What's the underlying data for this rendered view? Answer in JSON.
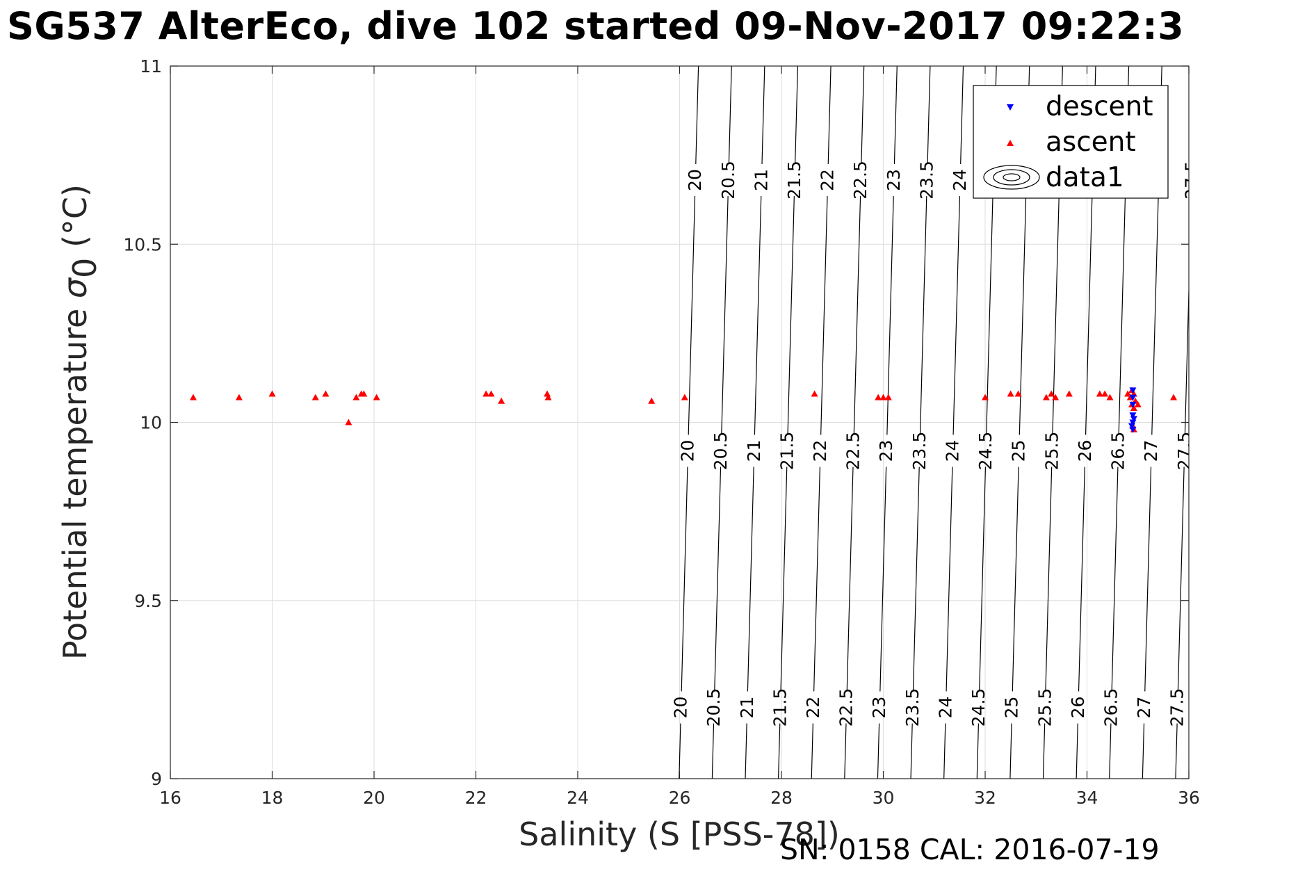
{
  "title": "SG537 AlterEco, dive 102 started 09-Nov-2017 09:22:3",
  "footer": "SN: 0158  CAL: 2016-07-19",
  "chart_data": {
    "type": "scatter",
    "xlabel": "Salinity (S [PSS-78])",
    "ylabel_main": "Potential temperature ",
    "ylabel_sigma": "σ",
    "ylabel_sub": "0",
    "ylabel_unit": " (°C)",
    "xlim": [
      16,
      36
    ],
    "ylim": [
      9,
      11
    ],
    "xticks": [
      16,
      18,
      20,
      22,
      24,
      26,
      28,
      30,
      32,
      34,
      36
    ],
    "yticks": [
      9,
      9.5,
      10,
      10.5,
      11
    ],
    "ytick_labels": [
      "9",
      "9.5",
      "10",
      "10.5",
      "11"
    ],
    "grid": true,
    "legend_position": "top-right",
    "series": [
      {
        "name": "descent",
        "color": "#0000ff",
        "marker": "triangle-down",
        "points": [
          [
            34.9,
            10.09
          ],
          [
            34.9,
            10.07
          ],
          [
            34.9,
            10.05
          ],
          [
            34.9,
            10.02
          ],
          [
            34.92,
            10.01
          ],
          [
            34.9,
            10.0
          ],
          [
            34.88,
            9.99
          ],
          [
            34.9,
            9.98
          ]
        ]
      },
      {
        "name": "ascent",
        "color": "#ff0000",
        "marker": "triangle-up",
        "points": [
          [
            16.45,
            10.07
          ],
          [
            17.35,
            10.07
          ],
          [
            18.0,
            10.08
          ],
          [
            18.85,
            10.07
          ],
          [
            19.05,
            10.08
          ],
          [
            19.5,
            10.0
          ],
          [
            19.65,
            10.07
          ],
          [
            19.75,
            10.08
          ],
          [
            19.8,
            10.08
          ],
          [
            20.05,
            10.07
          ],
          [
            22.2,
            10.08
          ],
          [
            22.3,
            10.08
          ],
          [
            22.5,
            10.06
          ],
          [
            23.4,
            10.08
          ],
          [
            23.42,
            10.07
          ],
          [
            25.45,
            10.06
          ],
          [
            26.1,
            10.07
          ],
          [
            28.65,
            10.08
          ],
          [
            29.9,
            10.07
          ],
          [
            30.0,
            10.07
          ],
          [
            30.1,
            10.07
          ],
          [
            32.0,
            10.07
          ],
          [
            32.5,
            10.08
          ],
          [
            32.65,
            10.08
          ],
          [
            33.2,
            10.07
          ],
          [
            33.3,
            10.08
          ],
          [
            33.38,
            10.07
          ],
          [
            33.65,
            10.08
          ],
          [
            34.25,
            10.08
          ],
          [
            34.35,
            10.08
          ],
          [
            34.45,
            10.07
          ],
          [
            34.8,
            10.08
          ],
          [
            34.85,
            10.07
          ],
          [
            34.88,
            10.09
          ],
          [
            34.92,
            10.08
          ],
          [
            34.95,
            10.06
          ],
          [
            34.88,
            10.05
          ],
          [
            34.92,
            10.04
          ],
          [
            34.9,
            9.99
          ],
          [
            34.92,
            9.98
          ],
          [
            35.0,
            10.05
          ],
          [
            35.7,
            10.07
          ]
        ]
      }
    ],
    "contour_series_name": "data1",
    "contour_levels": [
      "20",
      "20.5",
      "21",
      "21.5",
      "22",
      "22.5",
      "23",
      "23.5",
      "24",
      "24.5",
      "25",
      "25.5",
      "26",
      "26.5",
      "27",
      "27.5"
    ],
    "contour_salinity_at_9": [
      25.99,
      26.64,
      27.29,
      27.94,
      28.59,
      29.24,
      29.89,
      30.54,
      31.19,
      31.84,
      32.49,
      33.14,
      33.79,
      34.44,
      35.09,
      35.74
    ],
    "contour_salinity_at_11": [
      26.37,
      27.02,
      27.67,
      28.32,
      28.97,
      29.62,
      30.27,
      30.92,
      31.57,
      32.22,
      32.87,
      33.52,
      34.17,
      34.82,
      35.47,
      36.12
    ],
    "contour_label_rows": [
      9.2,
      9.92,
      10.68
    ]
  }
}
